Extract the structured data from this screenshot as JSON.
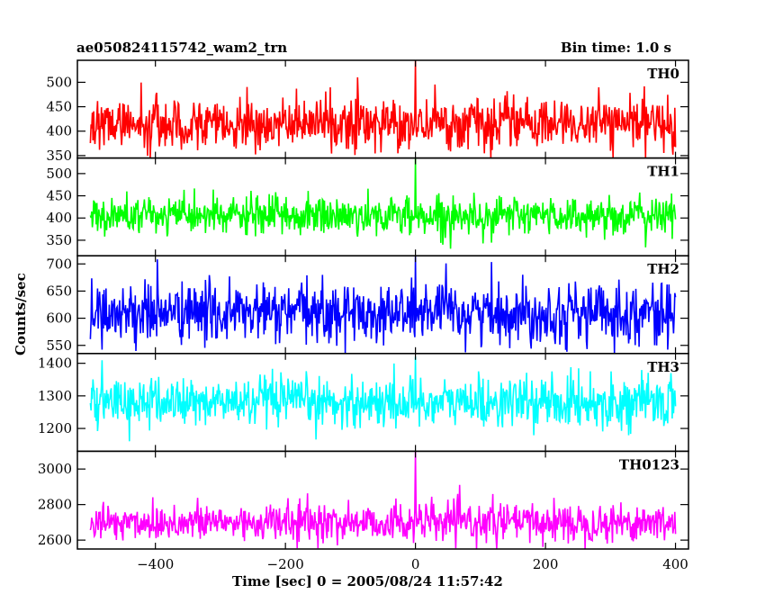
{
  "chart_data": {
    "type": "line",
    "title": "ae050824115742_wam2_trn",
    "bin_time_label": "Bin time: 1.0 s",
    "xlabel": "Time [sec] 0 = 2005/08/24 11:57:42",
    "ylabel": "Counts/sec",
    "xlim": [
      -520,
      420
    ],
    "x_range": [
      -500,
      400
    ],
    "x_step": 1,
    "x_ticks": [
      -400,
      -200,
      0,
      200,
      400
    ],
    "x_tick_labels": [
      "−400",
      "−200",
      "0",
      "200",
      "400"
    ],
    "grid": false,
    "panels": [
      {
        "name": "TH0",
        "color": "#ff0000",
        "ylim": [
          345,
          545
        ],
        "yticks": [
          350,
          400,
          450,
          500
        ],
        "yticklabels": [
          "350",
          "400",
          "450",
          "500"
        ],
        "mean": 415,
        "sd": 25,
        "spike_x": 0,
        "spike_y": 545
      },
      {
        "name": "TH1",
        "color": "#00ff00",
        "ylim": [
          315,
          535
        ],
        "yticks": [
          350,
          400,
          450,
          500
        ],
        "yticklabels": [
          "350",
          "400",
          "450",
          "500"
        ],
        "mean": 405,
        "sd": 22,
        "spike_x": 0,
        "spike_y": 535
      },
      {
        "name": "TH2",
        "color": "#0000ff",
        "ylim": [
          535,
          715
        ],
        "yticks": [
          550,
          600,
          650,
          700
        ],
        "yticklabels": [
          "550",
          "600",
          "650",
          "700"
        ],
        "mean": 610,
        "sd": 28,
        "spike_x": 0,
        "spike_y": 715
      },
      {
        "name": "TH3",
        "color": "#00ffff",
        "ylim": [
          1130,
          1430
        ],
        "yticks": [
          1200,
          1300,
          1400
        ],
        "yticklabels": [
          "1200",
          "1300",
          "1400"
        ],
        "mean": 1280,
        "sd": 38,
        "spike_x": 0,
        "spike_y": 1420
      },
      {
        "name": "TH0123",
        "color": "#ff00ff",
        "ylim": [
          2550,
          3100
        ],
        "yticks": [
          2600,
          2800,
          3000
        ],
        "yticklabels": [
          "2600",
          "2800",
          "3000"
        ],
        "mean": 2700,
        "sd": 55,
        "spike_x": 0,
        "spike_y": 3100
      }
    ]
  }
}
